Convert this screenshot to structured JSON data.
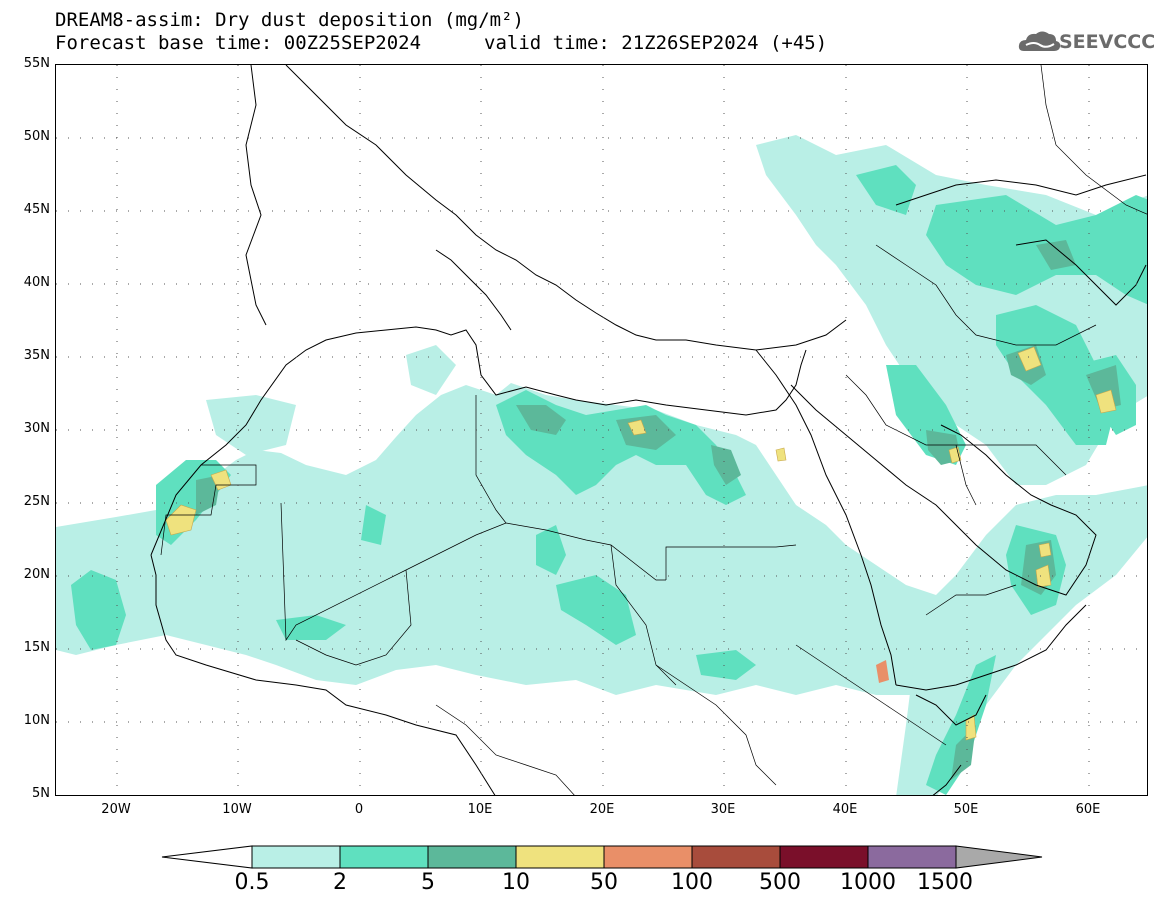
{
  "header": {
    "title_line1": "DREAM8-assim: Dry dust deposition (mg/m²)",
    "title_line2": "Forecast base time: 00Z25SEP2024",
    "valid_time": "valid time: 21Z26SEP2024 (+45)",
    "logo_text": "SEEVCCC",
    "logo_icon": "cloud-icon"
  },
  "map": {
    "lon_range": [
      -25,
      65
    ],
    "lat_range": [
      5,
      55
    ],
    "lat_labels": [
      "55N",
      "50N",
      "45N",
      "40N",
      "35N",
      "30N",
      "25N",
      "20N",
      "15N",
      "10N",
      "5N"
    ],
    "lon_labels": [
      "20W",
      "10W",
      "0",
      "10E",
      "20E",
      "30E",
      "40E",
      "50E",
      "60E"
    ],
    "grid": "dotted",
    "deposition_areas": [
      {
        "region": "Atlantic off Western Sahara",
        "level": "0.5-2"
      },
      {
        "region": "Western Sahara coast",
        "level": "10-50"
      },
      {
        "region": "Libya coast / Gulf of Sirte",
        "level": "5-10"
      },
      {
        "region": "Egypt western desert",
        "level": "2-10"
      },
      {
        "region": "Gulf of Suez",
        "level": "10-50"
      },
      {
        "region": "Iraq / Kuwait",
        "level": "10-50"
      },
      {
        "region": "Central Iran",
        "level": "10-50"
      },
      {
        "region": "Eastern Iran",
        "level": "10-50"
      },
      {
        "region": "Oman",
        "level": "10-50"
      },
      {
        "region": "Bab-el-Mandeb",
        "level": "50-100"
      },
      {
        "region": "Somalia coast",
        "level": "10-50"
      },
      {
        "region": "Caspian / Caucasus",
        "level": "2-10"
      }
    ]
  },
  "colorbar": {
    "labels": [
      "0.5",
      "2",
      "5",
      "10",
      "50",
      "100",
      "500",
      "1000",
      "1500"
    ],
    "colors": [
      "#b9efe6",
      "#5fe0bf",
      "#5cb89a",
      "#efe27e",
      "#e98f68",
      "#a84c3c",
      "#7a0f2a",
      "#8b6a9e"
    ],
    "under_color": "#ffffff",
    "over_color": "#a9a9a9"
  }
}
